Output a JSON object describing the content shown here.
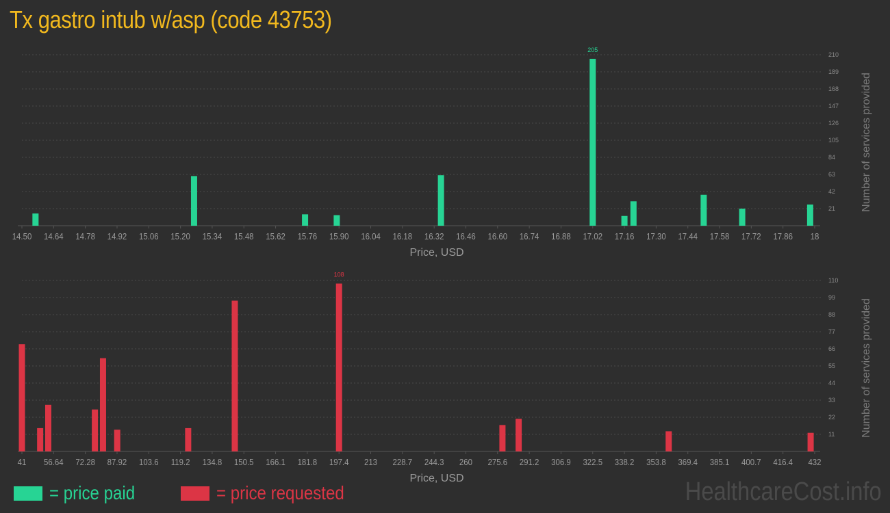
{
  "title": "Tx gastro intub w/asp (code 43753)",
  "legend": {
    "paid_label": "= price paid",
    "requested_label": "= price requested"
  },
  "watermark": "HealthcareCost.info",
  "colors": {
    "paid": "#27d494",
    "requested": "#dc3545",
    "title": "#f2b91e",
    "background": "#2e2e2e"
  },
  "chart_data": [
    {
      "type": "bar",
      "name": "price paid",
      "color": "#27d494",
      "xlabel": "Price, USD",
      "ylabel": "Number of services provided",
      "xlim": [
        14.5,
        18
      ],
      "ylim": [
        0,
        210
      ],
      "x_ticks": [
        "14.50",
        "14.64",
        "14.78",
        "14.92",
        "15.06",
        "15.20",
        "15.34",
        "15.48",
        "15.62",
        "15.76",
        "15.90",
        "16.04",
        "16.18",
        "16.32",
        "16.46",
        "16.60",
        "16.74",
        "16.88",
        "17.02",
        "17.16",
        "17.30",
        "17.44",
        "17.58",
        "17.72",
        "17.86",
        "18"
      ],
      "y_ticks": [
        21,
        42,
        63,
        84,
        105,
        126,
        147,
        168,
        189,
        210
      ],
      "points": [
        {
          "x": 14.56,
          "y": 15
        },
        {
          "x": 15.26,
          "y": 61
        },
        {
          "x": 15.75,
          "y": 14
        },
        {
          "x": 15.89,
          "y": 13
        },
        {
          "x": 16.35,
          "y": 62
        },
        {
          "x": 17.02,
          "y": 205,
          "label": "205"
        },
        {
          "x": 17.16,
          "y": 12
        },
        {
          "x": 17.2,
          "y": 30
        },
        {
          "x": 17.51,
          "y": 38
        },
        {
          "x": 17.68,
          "y": 21
        },
        {
          "x": 17.98,
          "y": 26
        }
      ],
      "grid": true
    },
    {
      "type": "bar",
      "name": "price requested",
      "color": "#dc3545",
      "xlabel": "Price, USD",
      "ylabel": "Number of services provided",
      "xlim": [
        41,
        432
      ],
      "ylim": [
        0,
        110
      ],
      "x_ticks": [
        "41",
        "56.64",
        "72.28",
        "87.92",
        "103.6",
        "119.2",
        "134.8",
        "150.5",
        "166.1",
        "181.8",
        "197.4",
        "213",
        "228.7",
        "244.3",
        "260",
        "275.6",
        "291.2",
        "306.9",
        "322.5",
        "338.2",
        "353.8",
        "369.4",
        "385.1",
        "400.7",
        "416.4",
        "432"
      ],
      "y_ticks": [
        11,
        22,
        33,
        44,
        55,
        66,
        77,
        88,
        99,
        110
      ],
      "points": [
        {
          "x": 41,
          "y": 69
        },
        {
          "x": 50,
          "y": 15
        },
        {
          "x": 54,
          "y": 30
        },
        {
          "x": 77,
          "y": 27
        },
        {
          "x": 81,
          "y": 60
        },
        {
          "x": 88,
          "y": 14
        },
        {
          "x": 123,
          "y": 15
        },
        {
          "x": 146,
          "y": 97
        },
        {
          "x": 197.4,
          "y": 108,
          "label": "108"
        },
        {
          "x": 278,
          "y": 17
        },
        {
          "x": 286,
          "y": 21
        },
        {
          "x": 360,
          "y": 13
        },
        {
          "x": 430,
          "y": 12
        }
      ],
      "grid": true
    }
  ]
}
